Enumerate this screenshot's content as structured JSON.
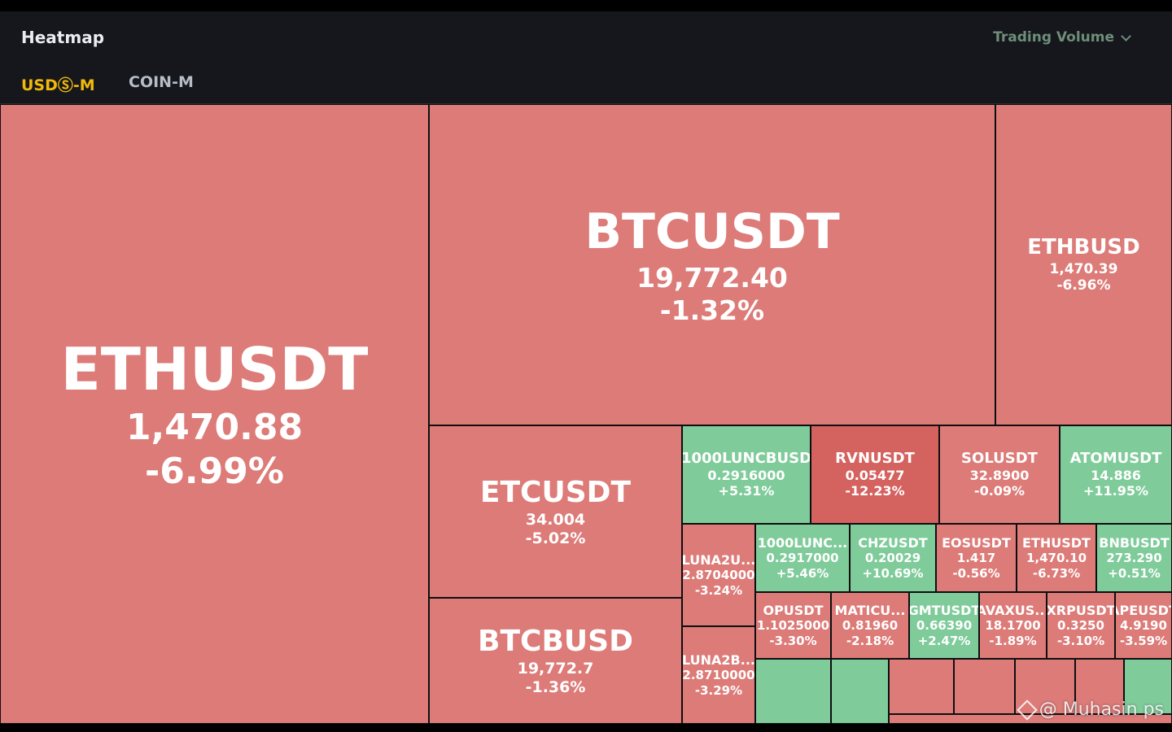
{
  "header": {
    "title": "Heatmap",
    "sort_label": "Trading Volume",
    "tabs": [
      {
        "label": "USDⓈ-M",
        "active": true
      },
      {
        "label": "COIN-M",
        "active": false
      }
    ]
  },
  "colors": {
    "up": "#7fcb9a",
    "down": "#dc7b78",
    "down_strong": "#d4625f",
    "accent": "#f0b90b"
  },
  "tiles": [
    {
      "symbol": "ETHUSDT",
      "price": "1,470.88",
      "change": "-6.99%"
    },
    {
      "symbol": "BTCUSDT",
      "price": "19,772.40",
      "change": "-1.32%"
    },
    {
      "symbol": "ETHBUSD",
      "price": "1,470.39",
      "change": "-6.96%"
    },
    {
      "symbol": "ETCUSDT",
      "price": "34.004",
      "change": "-5.02%"
    },
    {
      "symbol": "BTCBUSD",
      "price": "19,772.7",
      "change": "-1.36%"
    },
    {
      "symbol": "1000LUNCBUSD",
      "price": "0.2916000",
      "change": "+5.31%"
    },
    {
      "symbol": "RVNUSDT",
      "price": "0.05477",
      "change": "-12.23%"
    },
    {
      "symbol": "SOLUSDT",
      "price": "32.8900",
      "change": "-0.09%"
    },
    {
      "symbol": "ATOMUSDT",
      "price": "14.886",
      "change": "+11.95%"
    },
    {
      "symbol": "LUNA2U...",
      "price": "2.8704000",
      "change": "-3.24%"
    },
    {
      "symbol": "1000LUNC...",
      "price": "0.2917000",
      "change": "+5.46%"
    },
    {
      "symbol": "CHZUSDT",
      "price": "0.20029",
      "change": "+10.69%"
    },
    {
      "symbol": "EOSUSDT",
      "price": "1.417",
      "change": "-0.56%"
    },
    {
      "symbol": "ETHUSDT",
      "price": "1,470.10",
      "change": "-6.73%"
    },
    {
      "symbol": "BNBUSDT",
      "price": "273.290",
      "change": "+0.51%"
    },
    {
      "symbol": "LUNA2B...",
      "price": "2.8710000",
      "change": "-3.29%"
    },
    {
      "symbol": "OPUSDT",
      "price": "1.1025000",
      "change": "-3.30%"
    },
    {
      "symbol": "MATICU...",
      "price": "0.81960",
      "change": "-2.18%"
    },
    {
      "symbol": "GMTUSDT",
      "price": "0.66390",
      "change": "+2.47%"
    },
    {
      "symbol": "AVAXUS...",
      "price": "18.1700",
      "change": "-1.89%"
    },
    {
      "symbol": "XRPUSDT",
      "price": "0.3250",
      "change": "-3.10%"
    },
    {
      "symbol": "APEUSDT",
      "price": "4.9190",
      "change": "-3.59%"
    }
  ],
  "watermark": "@ Muhasin ps"
}
